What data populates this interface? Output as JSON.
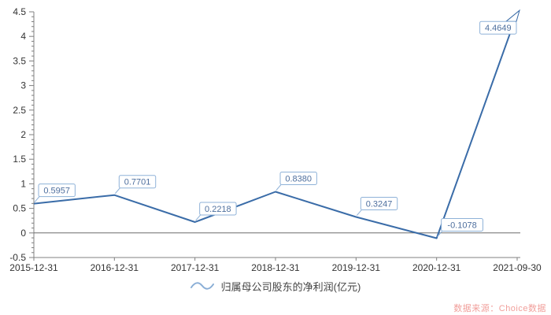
{
  "chart_data": {
    "type": "line",
    "title": "",
    "xlabel": "",
    "ylabel": "",
    "categories": [
      "2015-12-31",
      "2016-12-31",
      "2017-12-31",
      "2018-12-31",
      "2019-12-31",
      "2020-12-31",
      "2021-09-30"
    ],
    "series": [
      {
        "name": "归属母公司股东的净利润(亿元)",
        "values": [
          0.5957,
          0.7701,
          0.2218,
          0.838,
          0.3247,
          -0.1078,
          4.4649
        ]
      }
    ],
    "value_labels": [
      "0.5957",
      "0.7701",
      "0.2218",
      "0.8380",
      "0.3247",
      "-0.1078",
      "4.4649"
    ],
    "ylim": [
      -0.5,
      4.5
    ],
    "y_major_step": 0.5,
    "y_minor_step": 0.1,
    "y_tick_labels": [
      "-0.5",
      "0",
      "0.5",
      "1",
      "1.5",
      "2",
      "2.5",
      "3",
      "3.5",
      "4",
      "4.5"
    ],
    "grid": false,
    "zero_line": true,
    "legend_position": "bottom",
    "colors": {
      "series_line": "#3a6ca8",
      "label_border": "#8fb2d8",
      "label_text": "#4e6f9e",
      "label_bg": "#ffffff",
      "axis_line": "#808080",
      "zero_line": "#6b6b6b",
      "tick_text": "#333333",
      "legend_icon": "#8aaed6",
      "legend_text": "#444444",
      "source_text": "#f19f9b"
    }
  },
  "legend": {
    "label": "归属母公司股东的净利润(亿元)"
  },
  "footer": {
    "source_label": "数据来源：Choice数据"
  }
}
